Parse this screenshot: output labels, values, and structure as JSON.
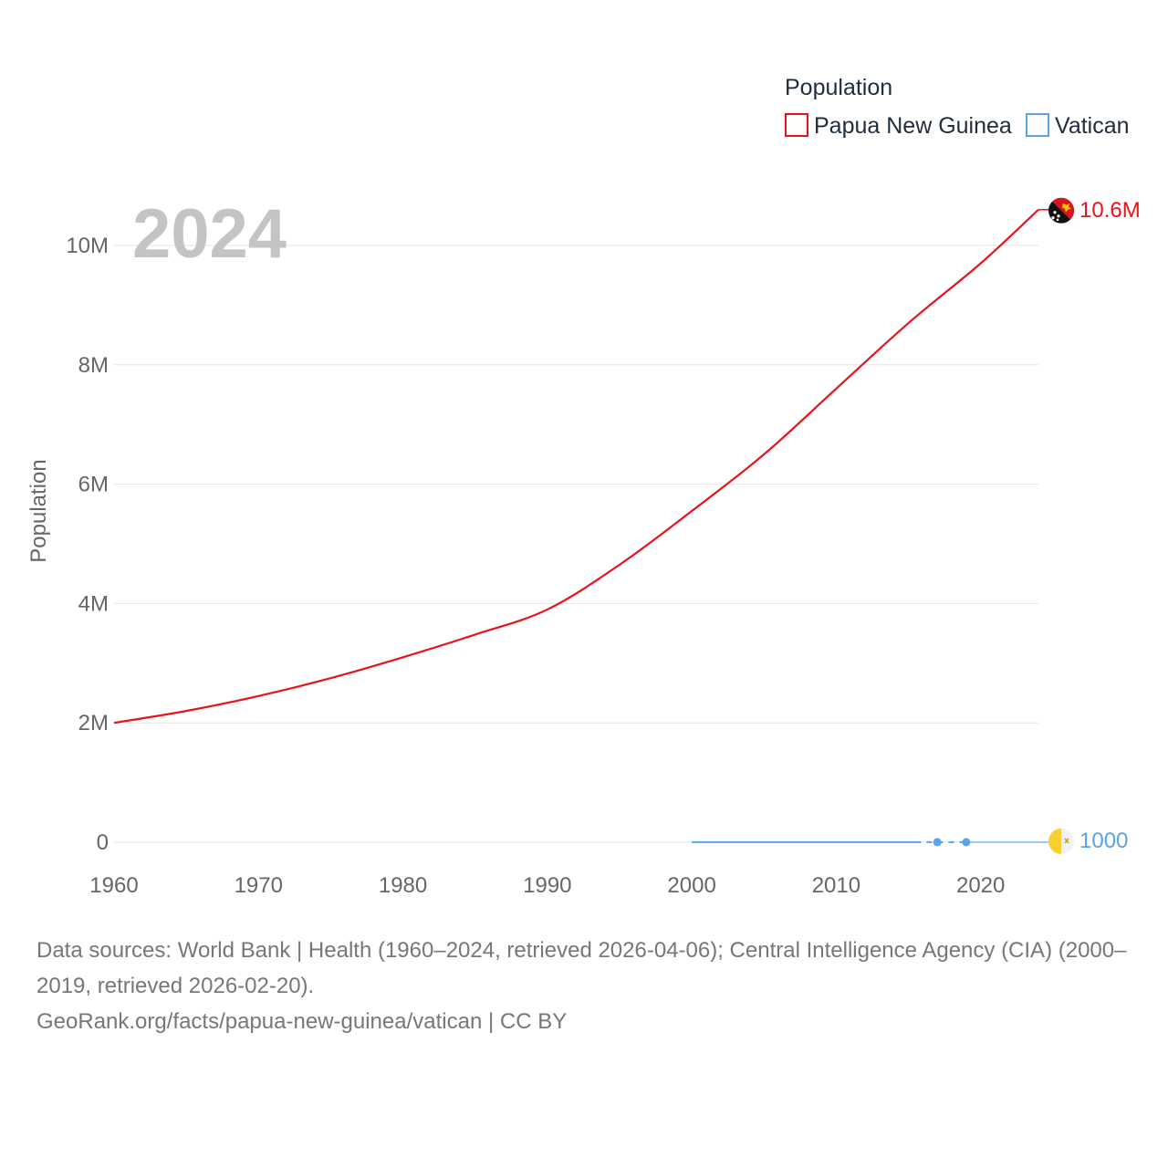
{
  "chart_data": {
    "type": "line",
    "year_label": "2024",
    "ylabel": "Population",
    "ylim": [
      0,
      10000000
    ],
    "xlim": [
      1960,
      2024
    ],
    "y_ticks": [
      {
        "value": 0,
        "label": "0"
      },
      {
        "value": 2000000,
        "label": "2M"
      },
      {
        "value": 4000000,
        "label": "4M"
      },
      {
        "value": 6000000,
        "label": "6M"
      },
      {
        "value": 8000000,
        "label": "8M"
      },
      {
        "value": 10000000,
        "label": "10M"
      }
    ],
    "x_ticks": [
      {
        "value": 1960,
        "label": "1960"
      },
      {
        "value": 1970,
        "label": "1970"
      },
      {
        "value": 1980,
        "label": "1980"
      },
      {
        "value": 1990,
        "label": "1990"
      },
      {
        "value": 2000,
        "label": "2000"
      },
      {
        "value": 2010,
        "label": "2010"
      },
      {
        "value": 2020,
        "label": "2020"
      }
    ],
    "legend": {
      "title": "Population",
      "items": [
        {
          "name": "Papua New Guinea",
          "color": "#e8141a"
        },
        {
          "name": "Vatican",
          "color": "#5aa3e6"
        }
      ]
    },
    "series": [
      {
        "name": "Papua New Guinea",
        "color": "#e8141a",
        "end_label": "10.6M",
        "points": [
          [
            1960,
            2000000
          ],
          [
            1965,
            2200000
          ],
          [
            1970,
            2450000
          ],
          [
            1975,
            2750000
          ],
          [
            1980,
            3100000
          ],
          [
            1985,
            3480000
          ],
          [
            1990,
            3900000
          ],
          [
            1995,
            4650000
          ],
          [
            2000,
            5550000
          ],
          [
            2005,
            6500000
          ],
          [
            2010,
            7600000
          ],
          [
            2015,
            8700000
          ],
          [
            2020,
            9700000
          ],
          [
            2024,
            10600000
          ]
        ]
      },
      {
        "name": "Vatican",
        "color": "#5aa3e6",
        "end_label": "1000",
        "segments": [
          {
            "style": "solid",
            "points": [
              [
                2000,
                1000
              ],
              [
                2015.5,
                1000
              ]
            ]
          },
          {
            "style": "dashed",
            "points": [
              [
                2015.5,
                1000
              ],
              [
                2017,
                1000
              ],
              [
                2019,
                1000
              ]
            ]
          },
          {
            "style": "solid-thin",
            "points": [
              [
                2019,
                1000
              ],
              [
                2024,
                1000
              ]
            ]
          }
        ],
        "markers": [
          [
            2017,
            1000
          ],
          [
            2019,
            1000
          ]
        ]
      }
    ]
  },
  "footer": {
    "sources": "Data sources: World Bank | Health (1960–2024, retrieved 2026-04-06); Central Intelligence Agency (CIA) (2000–2019, retrieved 2026-02-20).",
    "credit": "GeoRank.org/facts/papua-new-guinea/vatican | CC BY"
  }
}
